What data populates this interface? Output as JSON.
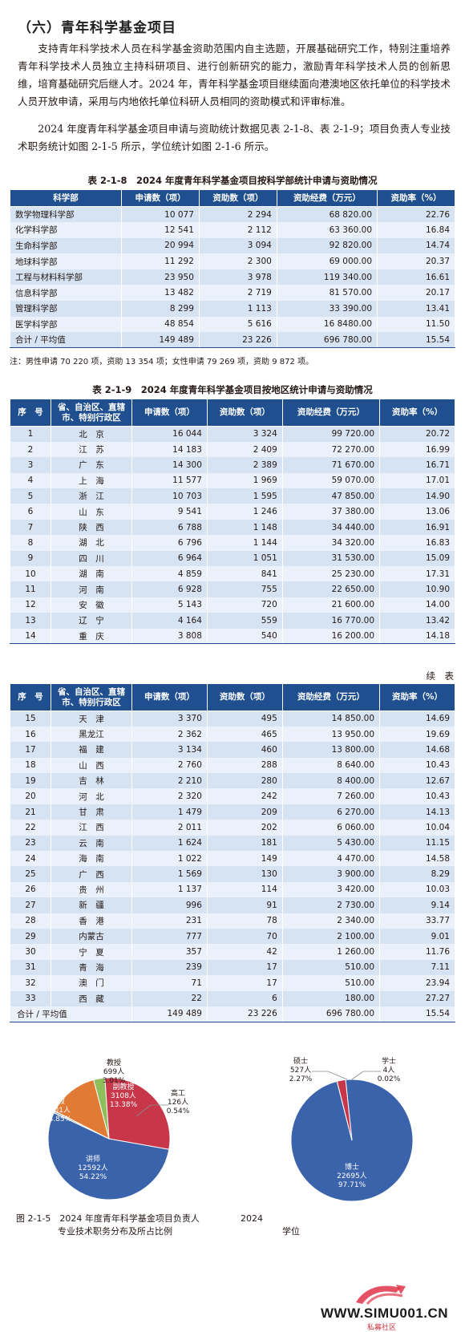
{
  "section_title": "（六）青年科学基金项目",
  "paragraphs": [
    "支持青年科学技术人员在科学基金资助范围内自主选题，开展基础研究工作，特别注重培养青年科学技术人员独立主持科研项目、进行创新研究的能力，激励青年科学技术人员的创新思维，培育基础研究后继人才。2024 年，青年科学基金项目继续面向港澳地区依托单位的科学技术人员开放申请，采用与内地依托单位科研人员相同的资助模式和评审标准。",
    "2024 年度青年科学基金项目申请与资助统计数据见表 2-1-8、表 2-1-9；项目负责人专业技术职务统计如图 2-1-5 所示，学位统计如图 2-1-6 所示。"
  ],
  "table_218": {
    "caption": "表 2-1-8　2024 年度青年科学基金项目按科学部统计申请与资助情况",
    "headers": [
      "科学部",
      "申请数（项）",
      "资助数（项）",
      "资助经费（万元）",
      "资助率（%）"
    ],
    "rows": [
      [
        "数学物理科学部",
        "10 077",
        "2 294",
        "68 820.00",
        "22.76"
      ],
      [
        "化学科学部",
        "12 541",
        "2 112",
        "63 360.00",
        "16.84"
      ],
      [
        "生命科学部",
        "20 994",
        "3 094",
        "92 820.00",
        "14.74"
      ],
      [
        "地球科学部",
        "11 292",
        "2 300",
        "69 000.00",
        "20.37"
      ],
      [
        "工程与材料科学部",
        "23 950",
        "3 978",
        "119 340.00",
        "16.61"
      ],
      [
        "信息科学部",
        "13 482",
        "2 719",
        "81 570.00",
        "20.17"
      ],
      [
        "管理科学部",
        "8 299",
        "1 113",
        "33 390.00",
        "13.41"
      ],
      [
        "医学科学部",
        "48 854",
        "5 616",
        "16 8480.00",
        "11.50"
      ],
      [
        "合计 / 平均值",
        "149 489",
        "23 226",
        "696 780.00",
        "15.54"
      ]
    ],
    "note": "注：男性申请 70 220 项，资助 13 354 项；女性申请 79 269 项，资助 9 872 项。"
  },
  "table_219": {
    "caption": "表 2-1-9　2024 年度青年科学基金项目按地区统计申请与资助情况",
    "headers": [
      "序　号",
      "省、自治区、直辖市、特别行政区",
      "申请数（项）",
      "资助数（项）",
      "资助经费（万元）",
      "资助率（%）"
    ],
    "rows": [
      [
        "1",
        "北　京",
        "16 044",
        "3 324",
        "99 720.00",
        "20.72"
      ],
      [
        "2",
        "江　苏",
        "14 183",
        "2 409",
        "72 270.00",
        "16.99"
      ],
      [
        "3",
        "广　东",
        "14 300",
        "2 389",
        "71 670.00",
        "16.71"
      ],
      [
        "4",
        "上　海",
        "11 577",
        "1 969",
        "59 070.00",
        "17.01"
      ],
      [
        "5",
        "浙　江",
        "10 703",
        "1 595",
        "47 850.00",
        "14.90"
      ],
      [
        "6",
        "山　东",
        "9 541",
        "1 246",
        "37 380.00",
        "13.06"
      ],
      [
        "7",
        "陕　西",
        "6 788",
        "1 148",
        "34 440.00",
        "16.91"
      ],
      [
        "8",
        "湖　北",
        "6 796",
        "1 144",
        "34 320.00",
        "16.83"
      ],
      [
        "9",
        "四　川",
        "6 964",
        "1 051",
        "31 530.00",
        "15.09"
      ],
      [
        "10",
        "湖　南",
        "4 859",
        "841",
        "25 230.00",
        "17.31"
      ],
      [
        "11",
        "河　南",
        "6 928",
        "755",
        "22 650.00",
        "10.90"
      ],
      [
        "12",
        "安　徽",
        "5 143",
        "720",
        "21 600.00",
        "14.00"
      ],
      [
        "13",
        "辽　宁",
        "4 164",
        "559",
        "16 770.00",
        "13.42"
      ],
      [
        "14",
        "重　庆",
        "3 808",
        "540",
        "16 200.00",
        "14.18"
      ]
    ]
  },
  "table_219_cont": {
    "continued_label": "续　表",
    "headers": [
      "序　号",
      "省、自治区、直辖市、特别行政区",
      "申请数（项）",
      "资助数（项）",
      "资助经费（万元）",
      "资助率（%）"
    ],
    "rows": [
      [
        "15",
        "天　津",
        "3 370",
        "495",
        "14 850.00",
        "14.69"
      ],
      [
        "16",
        "黑龙江",
        "2 362",
        "465",
        "13 950.00",
        "19.69"
      ],
      [
        "17",
        "福　建",
        "3 134",
        "460",
        "13 800.00",
        "14.68"
      ],
      [
        "18",
        "山　西",
        "2 760",
        "288",
        "8 640.00",
        "10.43"
      ],
      [
        "19",
        "吉　林",
        "2 210",
        "280",
        "8 400.00",
        "12.67"
      ],
      [
        "20",
        "河　北",
        "2 320",
        "242",
        "7 260.00",
        "10.43"
      ],
      [
        "21",
        "甘　肃",
        "1 479",
        "209",
        "6 270.00",
        "14.13"
      ],
      [
        "22",
        "江　西",
        "2 011",
        "202",
        "6 060.00",
        "10.04"
      ],
      [
        "23",
        "云　南",
        "1 624",
        "181",
        "5 430.00",
        "11.15"
      ],
      [
        "24",
        "海　南",
        "1 022",
        "149",
        "4 470.00",
        "14.58"
      ],
      [
        "25",
        "广　西",
        "1 569",
        "130",
        "3 900.00",
        "8.29"
      ],
      [
        "26",
        "贵　州",
        "1 137",
        "114",
        "3 420.00",
        "10.03"
      ],
      [
        "27",
        "新　疆",
        "996",
        "91",
        "2 730.00",
        "9.14"
      ],
      [
        "28",
        "香　港",
        "231",
        "78",
        "2 340.00",
        "33.77"
      ],
      [
        "29",
        "内蒙古",
        "777",
        "70",
        "2 100.00",
        "9.01"
      ],
      [
        "30",
        "宁　夏",
        "357",
        "42",
        "1 260.00",
        "11.76"
      ],
      [
        "31",
        "青　海",
        "239",
        "17",
        "510.00",
        "7.11"
      ],
      [
        "32",
        "澳　门",
        "71",
        "17",
        "510.00",
        "23.94"
      ],
      [
        "33",
        "西　藏",
        "22",
        "6",
        "180.00",
        "27.27"
      ],
      [
        "合计 / 平均值",
        "",
        "149 489",
        "23 226",
        "696 780.00",
        "15.54"
      ]
    ]
  },
  "colors": {
    "header_blue": "#1f4f8f",
    "row_light": "#d5e3f3",
    "row_lighter": "#eaf1fa",
    "pie_blue": "#3a63ab",
    "pie_red": "#c8364a",
    "pie_orange": "#e07a34",
    "pie_green": "#8fbf5a",
    "pie_gray": "#b4b4b4"
  },
  "chart_data": [
    {
      "type": "pie",
      "caption_lines": [
        "图 2-1-5　2024 年度青年科学基金项目负责人",
        "专业技术职务分布及所占比例"
      ],
      "slices": [
        {
          "label": "讲师",
          "count_label": "12592人",
          "pct_label": "54.22%",
          "value": 54.22,
          "color": "#3a63ab"
        },
        {
          "label": "高工",
          "count_label": "126人",
          "pct_label": "0.54%",
          "value": 0.54,
          "color": "#b4b4b4"
        },
        {
          "label": "副教授",
          "count_label": "3108人",
          "pct_label": "13.38%",
          "value": 13.38,
          "color": "#e07a34"
        },
        {
          "label": "教授",
          "count_label": "699人",
          "pct_label": "3.01%",
          "value": 3.01,
          "color": "#8fbf5a"
        },
        {
          "label": "助教",
          "count_label": "6701人",
          "pct_label": "28.85%",
          "value": 28.85,
          "color": "#c8364a"
        }
      ]
    },
    {
      "type": "pie",
      "caption_lines": [
        "2024",
        "学位"
      ],
      "slices": [
        {
          "label": "博士",
          "count_label": "22695人",
          "pct_label": "97.71%",
          "value": 97.71,
          "color": "#3a63ab"
        },
        {
          "label": "学士",
          "count_label": "4人",
          "pct_label": "0.02%",
          "value": 0.02,
          "color": "#8fbf5a"
        },
        {
          "label": "硕士",
          "count_label": "527人",
          "pct_label": "2.27%",
          "value": 2.27,
          "color": "#c8364a"
        }
      ]
    }
  ],
  "watermark": {
    "text": "WWW.SIMU001.CN",
    "subtext": "私募社区"
  }
}
